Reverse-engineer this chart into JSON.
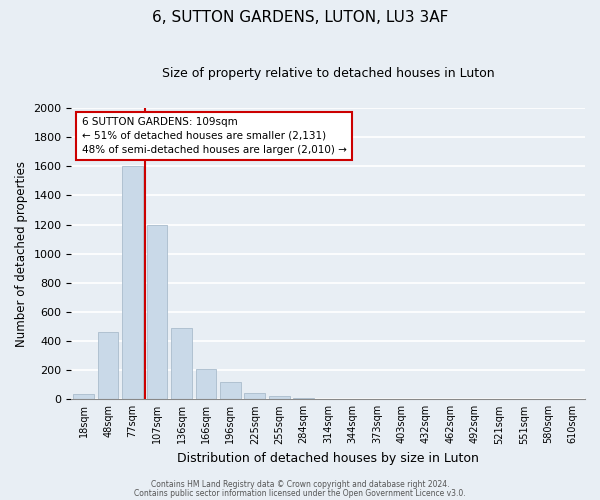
{
  "title": "6, SUTTON GARDENS, LUTON, LU3 3AF",
  "subtitle": "Size of property relative to detached houses in Luton",
  "xlabel": "Distribution of detached houses by size in Luton",
  "ylabel": "Number of detached properties",
  "bin_labels": [
    "18sqm",
    "48sqm",
    "77sqm",
    "107sqm",
    "136sqm",
    "166sqm",
    "196sqm",
    "225sqm",
    "255sqm",
    "284sqm",
    "314sqm",
    "344sqm",
    "373sqm",
    "403sqm",
    "432sqm",
    "462sqm",
    "492sqm",
    "521sqm",
    "551sqm",
    "580sqm",
    "610sqm"
  ],
  "bar_heights": [
    35,
    460,
    1600,
    1200,
    490,
    210,
    120,
    45,
    20,
    10,
    0,
    0,
    0,
    0,
    0,
    0,
    0,
    0,
    0,
    0,
    0
  ],
  "bar_color": "#c9d9e8",
  "bar_edgecolor": "#aabccc",
  "ylim": [
    0,
    2000
  ],
  "yticks": [
    0,
    200,
    400,
    600,
    800,
    1000,
    1200,
    1400,
    1600,
    1800,
    2000
  ],
  "annotation_title": "6 SUTTON GARDENS: 109sqm",
  "annotation_line1": "← 51% of detached houses are smaller (2,131)",
  "annotation_line2": "48% of semi-detached houses are larger (2,010) →",
  "footer_line1": "Contains HM Land Registry data © Crown copyright and database right 2024.",
  "footer_line2": "Contains public sector information licensed under the Open Government Licence v3.0.",
  "background_color": "#e8eef4",
  "plot_background_color": "#e8eef4",
  "grid_color": "#ffffff",
  "annotation_box_facecolor": "#ffffff",
  "annotation_border_color": "#cc0000",
  "red_line_color": "#cc0000",
  "title_fontsize": 11,
  "subtitle_fontsize": 9
}
